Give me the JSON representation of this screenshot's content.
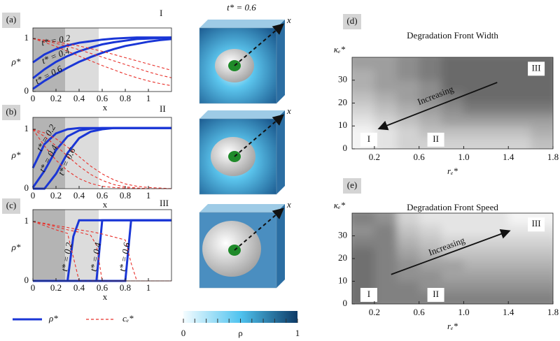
{
  "figure_title": "t* = 0.6",
  "legend": [
    {
      "name": "ρ*",
      "color": "#1a36d6",
      "dash": false
    },
    {
      "name": "cₑ*",
      "color": "#e8302a",
      "dash": true
    }
  ],
  "colorbar": {
    "label": "ρ",
    "lim": [
      0,
      1
    ],
    "ticks": [
      0,
      1
    ],
    "minor_ticks": [
      0,
      0.1,
      0.2,
      0.3,
      0.4,
      0.5,
      0.6,
      0.7,
      0.8,
      0.9,
      1
    ],
    "colors": [
      "#f4fcff",
      "#4fc3ef",
      "#0d3a66"
    ]
  },
  "renders": [
    "x",
    "x",
    "x"
  ],
  "chart_data": [
    {
      "type": "line",
      "label": "(a)",
      "regime": "I",
      "xlabel": "x",
      "ylabel": "ρ*",
      "xlim": [
        0,
        1.2
      ],
      "ylim": [
        0,
        1.2
      ],
      "xticks": [
        0,
        0.2,
        0.4,
        0.6,
        0.8,
        1
      ],
      "yticks": [
        0,
        1
      ],
      "shaded": [
        {
          "from": 0,
          "to": 0.28,
          "color": "#b4b4b4"
        },
        {
          "from": 0.28,
          "to": 0.57,
          "color": "#dcdcdc"
        }
      ],
      "x": [
        0,
        0.1,
        0.2,
        0.3,
        0.4,
        0.5,
        0.6,
        0.7,
        0.8,
        0.9,
        1,
        1.1,
        1.2
      ],
      "series": [
        {
          "name": "t* = 0.2",
          "color": "#1a36d6",
          "values": [
            0.55,
            0.7,
            0.8,
            0.87,
            0.92,
            0.95,
            0.98,
            1.0,
            1.01,
            1.02,
            1.02,
            1.02,
            1.02
          ]
        },
        {
          "name": "t* = 0.4",
          "color": "#1a36d6",
          "values": [
            0.25,
            0.42,
            0.56,
            0.67,
            0.76,
            0.83,
            0.89,
            0.93,
            0.96,
            0.99,
            1.0,
            1.01,
            1.02
          ]
        },
        {
          "name": "t* = 0.6",
          "color": "#1a36d6",
          "values": [
            0.05,
            0.2,
            0.33,
            0.45,
            0.56,
            0.65,
            0.73,
            0.8,
            0.86,
            0.9,
            0.94,
            0.97,
            0.99
          ]
        },
        {
          "color": "#e8302a",
          "dash": true,
          "values": [
            1.0,
            0.93,
            0.85,
            0.76,
            0.67,
            0.58,
            0.49,
            0.41,
            0.33,
            0.26,
            0.2,
            0.15,
            0.11
          ]
        },
        {
          "color": "#e8302a",
          "dash": true,
          "values": [
            1.0,
            0.96,
            0.91,
            0.85,
            0.79,
            0.72,
            0.65,
            0.58,
            0.51,
            0.44,
            0.37,
            0.31,
            0.26
          ]
        },
        {
          "color": "#e8302a",
          "dash": true,
          "values": [
            1.0,
            0.97,
            0.94,
            0.9,
            0.86,
            0.81,
            0.76,
            0.7,
            0.64,
            0.58,
            0.52,
            0.46,
            0.4
          ]
        }
      ]
    },
    {
      "type": "line",
      "label": "(b)",
      "regime": "II",
      "xlabel": "x",
      "ylabel": "ρ*",
      "xlim": [
        0,
        1.2
      ],
      "ylim": [
        0,
        1.2
      ],
      "xticks": [
        0,
        0.2,
        0.4,
        0.6,
        0.8,
        1
      ],
      "yticks": [
        0,
        1
      ],
      "shaded": [
        {
          "from": 0,
          "to": 0.28,
          "color": "#b4b4b4"
        },
        {
          "from": 0.28,
          "to": 0.57,
          "color": "#dcdcdc"
        }
      ],
      "x": [
        0,
        0.1,
        0.2,
        0.3,
        0.4,
        0.5,
        0.6,
        0.7,
        0.8,
        0.9,
        1,
        1.1,
        1.2
      ],
      "series": [
        {
          "name": "t* = 0.2",
          "color": "#1a36d6",
          "values": [
            0.35,
            0.75,
            0.93,
            1.0,
            1.02,
            1.02,
            1.02,
            1.02,
            1.02,
            1.02,
            1.02,
            1.02,
            1.02
          ]
        },
        {
          "name": "t* = 0.4",
          "color": "#1a36d6",
          "values": [
            0.02,
            0.3,
            0.65,
            0.88,
            0.98,
            1.01,
            1.02,
            1.02,
            1.02,
            1.02,
            1.02,
            1.02,
            1.02
          ]
        },
        {
          "name": "t* = 0.6",
          "color": "#1a36d6",
          "values": [
            0,
            0,
            0.25,
            0.6,
            0.85,
            0.96,
            1.0,
            1.02,
            1.02,
            1.02,
            1.02,
            1.02,
            1.02
          ]
        },
        {
          "color": "#e8302a",
          "dash": true,
          "values": [
            1,
            0.72,
            0.48,
            0.3,
            0.17,
            0.09,
            0.04,
            0.02,
            0.01,
            0,
            0,
            0,
            0
          ]
        },
        {
          "color": "#e8302a",
          "dash": true,
          "values": [
            1,
            0.88,
            0.72,
            0.55,
            0.38,
            0.24,
            0.14,
            0.07,
            0.03,
            0.01,
            0,
            0,
            0
          ]
        },
        {
          "color": "#e8302a",
          "dash": true,
          "values": [
            1,
            0.94,
            0.84,
            0.7,
            0.54,
            0.38,
            0.25,
            0.15,
            0.08,
            0.04,
            0.02,
            0.01,
            0
          ]
        }
      ]
    },
    {
      "type": "line",
      "label": "(c)",
      "regime": "III",
      "xlabel": "x",
      "ylabel": "ρ*",
      "xlim": [
        0,
        1.2
      ],
      "ylim": [
        0,
        1.2
      ],
      "xticks": [
        0,
        0.2,
        0.4,
        0.6,
        0.8,
        1
      ],
      "yticks": [
        0,
        1
      ],
      "shaded": [
        {
          "from": 0,
          "to": 0.28,
          "color": "#b4b4b4"
        },
        {
          "from": 0.28,
          "to": 0.57,
          "color": "#dcdcdc"
        }
      ],
      "x": [
        0,
        0.1,
        0.2,
        0.3,
        0.35,
        0.4,
        0.5,
        0.55,
        0.6,
        0.7,
        0.8,
        0.85,
        0.9,
        1,
        1.1,
        1.2
      ],
      "series": [
        {
          "name": "t* = 0.2",
          "color": "#1a36d6",
          "values": [
            0,
            0,
            0,
            0,
            0.75,
            1.02,
            1.02,
            1.02,
            1.02,
            1.02,
            1.02,
            1.02,
            1.02,
            1.02,
            1.02,
            1.02
          ]
        },
        {
          "name": "t* = 0.4",
          "color": "#1a36d6",
          "values": [
            0,
            0,
            0,
            0,
            0,
            0,
            0,
            0,
            1.02,
            1.02,
            1.02,
            1.02,
            1.02,
            1.02,
            1.02,
            1.02
          ]
        },
        {
          "name": "t* = 0.6",
          "color": "#1a36d6",
          "values": [
            0,
            0,
            0,
            0,
            0,
            0,
            0,
            0,
            0,
            0,
            0,
            1.02,
            1.02,
            1.02,
            1.02,
            1.02
          ]
        },
        {
          "color": "#e8302a",
          "dash": true,
          "values": [
            1,
            0.93,
            0.86,
            0.8,
            0.4,
            0,
            0,
            0,
            0,
            0,
            0,
            0,
            0,
            0,
            0,
            0
          ]
        },
        {
          "color": "#e8302a",
          "dash": true,
          "values": [
            1,
            0.96,
            0.91,
            0.86,
            0.84,
            0.82,
            0.77,
            0.6,
            0,
            0,
            0,
            0,
            0,
            0,
            0,
            0
          ]
        },
        {
          "color": "#e8302a",
          "dash": true,
          "values": [
            1,
            0.97,
            0.93,
            0.9,
            0.88,
            0.86,
            0.83,
            0.81,
            0.79,
            0.74,
            0.69,
            0.3,
            0,
            0,
            0,
            0
          ]
        }
      ]
    },
    {
      "type": "contour",
      "label": "(d)",
      "title": "Degradation Front Width",
      "xlabel": "rₑ*",
      "ylabel": "κₑ*",
      "arrow_label": "Increasing",
      "regimes": [
        "I",
        "II",
        "III"
      ],
      "xlim": [
        0,
        1.8
      ],
      "ylim": [
        0,
        40
      ],
      "xticks": [
        0.2,
        0.6,
        {
          "value": 1,
          "label": "1.0"
        },
        1.4,
        1.8
      ],
      "yticks": [
        0,
        10,
        20,
        30
      ],
      "colors": [
        "#f4f4f4",
        "#6a6a6a"
      ],
      "x": [
        0.1,
        0.3,
        0.5,
        0.7,
        0.9,
        1.1,
        1.3,
        1.5,
        1.7
      ],
      "y": [
        2.5,
        7.5,
        12.5,
        17.5,
        22.5,
        27.5,
        32.5,
        37.5
      ],
      "z": [
        [
          1,
          2,
          3,
          3,
          3,
          3,
          3,
          3,
          4
        ],
        [
          1,
          2,
          3,
          4,
          4,
          4,
          4,
          4,
          5
        ],
        [
          2,
          3,
          4,
          5,
          6,
          6,
          6,
          6,
          6
        ],
        [
          3,
          4,
          5,
          6,
          7,
          8,
          8,
          8,
          8
        ],
        [
          4,
          5,
          6,
          7,
          8,
          9,
          9,
          9,
          9
        ],
        [
          5,
          6,
          6,
          7,
          9,
          9,
          9,
          9,
          9
        ],
        [
          5,
          6,
          7,
          8,
          9,
          9,
          9,
          9,
          9
        ],
        [
          6,
          6,
          7,
          8,
          9,
          9,
          9,
          9,
          9
        ]
      ]
    },
    {
      "type": "contour",
      "label": "(e)",
      "title": "Degradation Front Speed",
      "xlabel": "rₑ*",
      "ylabel": "κₑ*",
      "arrow_label": "Increasing",
      "regimes": [
        "I",
        "II",
        "III"
      ],
      "xlim": [
        0,
        1.8
      ],
      "ylim": [
        0,
        40
      ],
      "xticks": [
        0.2,
        0.6,
        {
          "value": 1,
          "label": "1.0"
        },
        1.4,
        1.8
      ],
      "yticks": [
        0,
        10,
        20,
        30
      ],
      "colors": [
        "#707070",
        "#f4f4f4"
      ],
      "x": [
        0.1,
        0.3,
        0.5,
        0.7,
        0.9,
        1.1,
        1.3,
        1.5,
        1.7
      ],
      "y": [
        2.5,
        7.5,
        12.5,
        17.5,
        22.5,
        27.5,
        32.5,
        37.5
      ],
      "z": [
        [
          2,
          3,
          3,
          3,
          3,
          3,
          3,
          3,
          3
        ],
        [
          2,
          3,
          3,
          4,
          4,
          4,
          4,
          4,
          4
        ],
        [
          2,
          3,
          4,
          4,
          5,
          5,
          5,
          5,
          5
        ],
        [
          2,
          3,
          4,
          5,
          5,
          6,
          6,
          6,
          6
        ],
        [
          2,
          3,
          5,
          6,
          7,
          7,
          7,
          7,
          7
        ],
        [
          3,
          3,
          6,
          7,
          8,
          8,
          8,
          8,
          8
        ],
        [
          4,
          3,
          7,
          8,
          9,
          9,
          9,
          9,
          9
        ],
        [
          3,
          4,
          8,
          9,
          9,
          9,
          9,
          10,
          10
        ]
      ]
    }
  ]
}
